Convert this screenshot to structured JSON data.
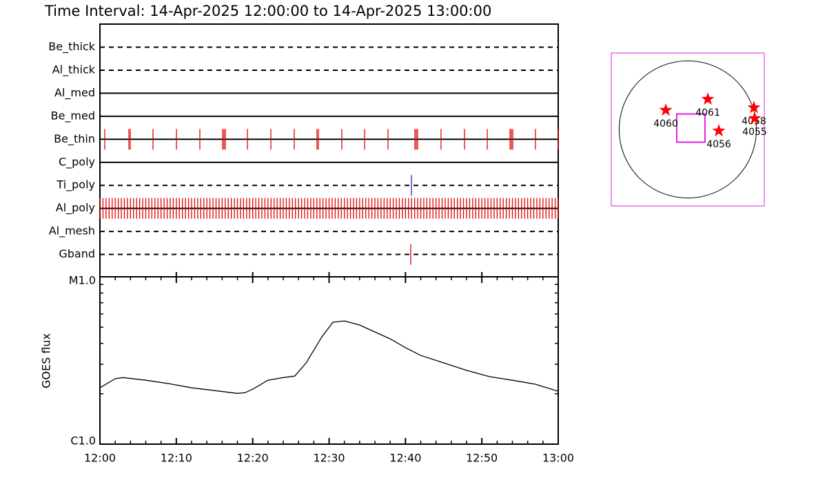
{
  "title": "Time Interval: 14-Apr-2025 12:00:00 to 14-Apr-2025 13:00:00",
  "chart_data": [
    {
      "type": "timeline",
      "xlim": [
        0,
        60
      ],
      "series": [
        {
          "name": "Be_thick",
          "line": "dashed",
          "color": "#e00000",
          "values": []
        },
        {
          "name": "Al_thick",
          "line": "dashed",
          "color": "#e00000",
          "values": []
        },
        {
          "name": "Al_med",
          "line": "solid",
          "color": "#e00000",
          "values": []
        },
        {
          "name": "Be_med",
          "line": "solid",
          "color": "#e00000",
          "values": []
        },
        {
          "name": "Be_thin",
          "line": "solid",
          "color": "#e00000",
          "values": [
            0.63,
            3.79,
            3.97,
            6.95,
            10.02,
            13.08,
            16.06,
            16.24,
            16.42,
            19.31,
            22.38,
            25.44,
            28.42,
            28.6,
            31.67,
            34.65,
            37.72,
            41.23,
            41.41,
            41.59,
            44.66,
            47.73,
            50.71,
            53.69,
            53.87,
            54.05,
            57.02,
            60
          ]
        },
        {
          "name": "C_poly",
          "line": "solid",
          "color": "#e00000",
          "values": []
        },
        {
          "name": "Ti_poly",
          "line": "dashed",
          "color": "#2020c0",
          "values": [
            40.78
          ]
        },
        {
          "name": "Al_poly",
          "line": "solid",
          "color": "#e00000",
          "values": [
            0,
            0.4,
            0.8,
            1.2,
            1.6,
            2,
            2.4,
            2.8,
            3.2,
            3.6,
            4,
            4.4,
            4.8,
            5.2,
            5.6,
            6,
            6.4,
            6.8,
            7.2,
            7.6,
            8,
            8.4,
            8.8,
            9.2,
            9.6,
            10,
            10.4,
            10.8,
            11.2,
            11.6,
            12,
            12.4,
            12.8,
            13.2,
            13.6,
            14,
            14.4,
            14.8,
            15.2,
            15.6,
            16,
            16.4,
            16.8,
            17.2,
            17.6,
            18,
            18.4,
            18.8,
            19.2,
            19.6,
            20,
            20.4,
            20.8,
            21.2,
            21.6,
            22,
            22.4,
            22.8,
            23.2,
            23.6,
            24,
            24.4,
            24.8,
            25.2,
            25.6,
            26,
            26.4,
            26.8,
            27.2,
            27.6,
            28,
            28.4,
            28.8,
            29.2,
            29.6,
            30,
            30.4,
            30.8,
            31.2,
            31.6,
            32,
            32.4,
            32.8,
            33.2,
            33.6,
            34,
            34.4,
            34.8,
            35.2,
            35.6,
            36,
            36.4,
            36.8,
            37.2,
            37.6,
            38,
            38.4,
            38.8,
            39.2,
            39.6,
            40,
            40.4,
            40.8,
            41.2,
            41.6,
            42,
            42.4,
            42.8,
            43.2,
            43.6,
            44,
            44.4,
            44.8,
            45.2,
            45.6,
            46,
            46.4,
            46.8,
            47.2,
            47.6,
            48,
            48.4,
            48.8,
            49.2,
            49.6,
            50,
            50.4,
            50.8,
            51.2,
            51.6,
            52,
            52.4,
            52.8,
            53.2,
            53.6,
            54,
            54.4,
            54.8,
            55.2,
            55.6,
            56,
            56.4,
            56.8,
            57.2,
            57.6,
            58,
            58.4,
            58.8,
            59.2,
            59.6,
            60
          ]
        },
        {
          "name": "Al_mesh",
          "line": "dashed",
          "color": "#e00000",
          "values": []
        },
        {
          "name": "Gband",
          "line": "dashed",
          "color": "#e00000",
          "values": [
            40.69
          ]
        }
      ]
    },
    {
      "type": "line",
      "ylabel": "GOES flux",
      "log": true,
      "color": "#000000",
      "xlim": [
        0,
        60
      ],
      "xticks": [
        {
          "value": 0,
          "label": "12:00"
        },
        {
          "value": 10,
          "label": "12:10"
        },
        {
          "value": 20,
          "label": "12:20"
        },
        {
          "value": 30,
          "label": "12:30"
        },
        {
          "value": 40,
          "label": "12:40"
        },
        {
          "value": 50,
          "label": "12:50"
        },
        {
          "value": 60,
          "label": "13:00"
        }
      ],
      "xminorticks": [
        2,
        4,
        6,
        8,
        12,
        14,
        16,
        18,
        22,
        24,
        26,
        28,
        32,
        34,
        36,
        38,
        42,
        44,
        46,
        48,
        52,
        54,
        56,
        58
      ],
      "ylim": [
        1e-06,
        1e-05
      ],
      "yticks": [
        {
          "value": 1e-06,
          "label": "C1.0"
        },
        {
          "value": 1e-05,
          "label": "M1.0"
        }
      ],
      "yminorticks": [
        2e-06,
        3e-06,
        4e-06,
        5e-06,
        6e-06,
        7e-06,
        8e-06,
        9e-06
      ],
      "x": [
        0,
        2,
        3,
        6,
        9,
        12,
        15,
        18,
        19,
        20,
        22,
        24,
        25.5,
        27,
        29,
        30.5,
        32,
        34,
        36,
        38,
        40,
        42,
        45,
        48,
        51,
        54,
        57,
        60
      ],
      "values": [
        2.17e-06,
        2.46e-06,
        2.5e-06,
        2.41e-06,
        2.3e-06,
        2.17e-06,
        2.09e-06,
        2.01e-06,
        2.03e-06,
        2.13e-06,
        2.41e-06,
        2.5e-06,
        2.55e-06,
        3.06e-06,
        4.34e-06,
        5.35e-06,
        5.45e-06,
        5.15e-06,
        4.68e-06,
        4.26e-06,
        3.77e-06,
        3.39e-06,
        3.06e-06,
        2.76e-06,
        2.53e-06,
        2.41e-06,
        2.28e-06,
        2.07e-06
      ]
    },
    {
      "type": "map",
      "xlim": [
        -1070,
        1070
      ],
      "ylim": [
        -1070,
        1070
      ],
      "radius": 960,
      "frame_color": "#e020e0",
      "marker_color": "#ff0000",
      "fov": {
        "x": 43,
        "y": 19,
        "size": 395
      },
      "regions": [
        {
          "name": "4060",
          "x": -308,
          "y": 270
        },
        {
          "name": "4061",
          "x": 280,
          "y": 424
        },
        {
          "name": "4056",
          "x": 434,
          "y": -19
        },
        {
          "name": "4058",
          "x": 925,
          "y": 305
        },
        {
          "name": "4055",
          "x": 935,
          "y": 154
        }
      ]
    }
  ]
}
